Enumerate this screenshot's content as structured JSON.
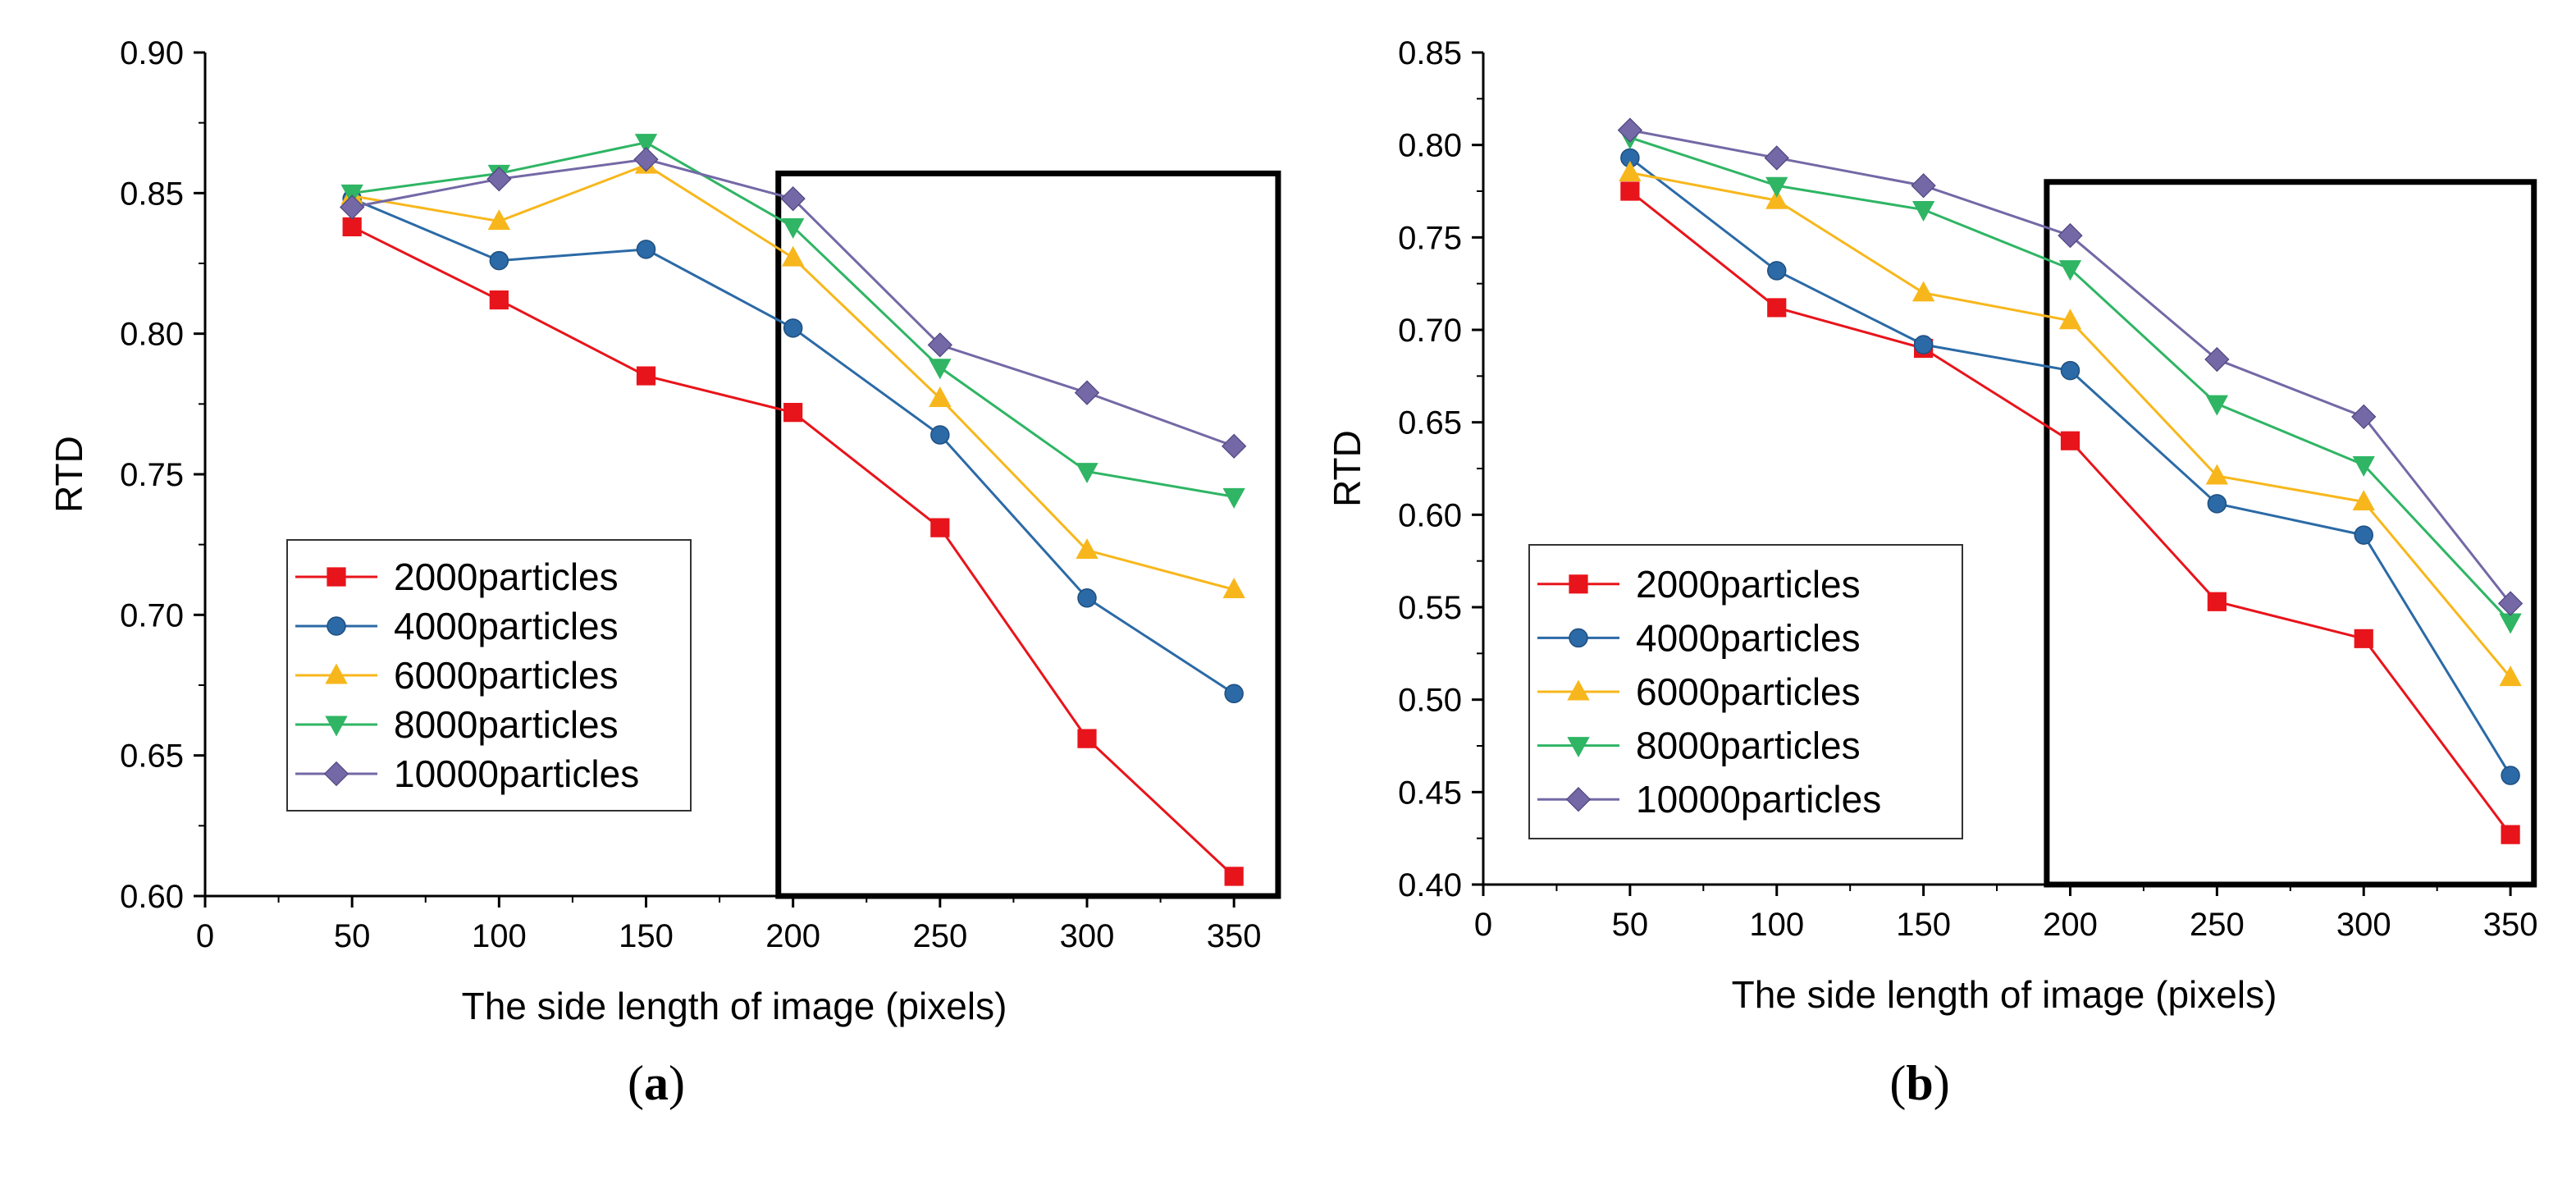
{
  "chart_data": [
    {
      "type": "line",
      "panel_label": "a",
      "xlabel": "The side length of image (pixels)",
      "ylabel": "RTD",
      "xlim": [
        0,
        360
      ],
      "ylim": [
        0.6,
        0.9
      ],
      "xticks": [
        0,
        50,
        100,
        150,
        200,
        250,
        300,
        350
      ],
      "yticks": [
        0.6,
        0.65,
        0.7,
        0.75,
        0.8,
        0.85,
        0.9
      ],
      "x": [
        50,
        100,
        150,
        200,
        250,
        300,
        350
      ],
      "legend_position": "bottom-left",
      "highlight_box": {
        "x_from": 195,
        "x_to": 365,
        "y_from": 0.6,
        "y_to": 0.857
      },
      "series": [
        {
          "name": "2000particles",
          "marker": "square",
          "color": "#e8141b",
          "values": [
            0.838,
            0.812,
            0.785,
            0.772,
            0.731,
            0.656,
            0.607
          ]
        },
        {
          "name": "4000particles",
          "marker": "circle",
          "color": "#2b6aa6",
          "values": [
            0.848,
            0.826,
            0.83,
            0.802,
            0.764,
            0.706,
            0.672
          ]
        },
        {
          "name": "6000particles",
          "marker": "triangle-up",
          "color": "#f7b71c",
          "values": [
            0.849,
            0.84,
            0.86,
            0.827,
            0.777,
            0.723,
            0.709
          ]
        },
        {
          "name": "8000particles",
          "marker": "triangle-down",
          "color": "#2fb564",
          "values": [
            0.85,
            0.857,
            0.868,
            0.838,
            0.788,
            0.751,
            0.742
          ]
        },
        {
          "name": "10000particles",
          "marker": "diamond",
          "color": "#7468a6",
          "values": [
            0.845,
            0.855,
            0.862,
            0.848,
            0.796,
            0.779,
            0.76
          ]
        }
      ]
    },
    {
      "type": "line",
      "panel_label": "b",
      "xlabel": "The side length of image (pixels)",
      "ylabel": "RTD",
      "xlim": [
        0,
        355
      ],
      "ylim": [
        0.4,
        0.85
      ],
      "xticks": [
        0,
        50,
        100,
        150,
        200,
        250,
        300,
        350
      ],
      "yticks": [
        0.4,
        0.45,
        0.5,
        0.55,
        0.6,
        0.65,
        0.7,
        0.75,
        0.8,
        0.85
      ],
      "x": [
        50,
        100,
        150,
        200,
        250,
        300,
        350
      ],
      "legend_position": "bottom-left",
      "highlight_box": {
        "x_from": 192,
        "x_to": 358,
        "y_from": 0.4,
        "y_to": 0.78
      },
      "series": [
        {
          "name": "2000particles",
          "marker": "square",
          "color": "#e8141b",
          "values": [
            0.775,
            0.712,
            0.69,
            0.64,
            0.553,
            0.533,
            0.427
          ]
        },
        {
          "name": "4000particles",
          "marker": "circle",
          "color": "#2b6aa6",
          "values": [
            0.793,
            0.732,
            0.692,
            0.678,
            0.606,
            0.589,
            0.459
          ]
        },
        {
          "name": "6000particles",
          "marker": "triangle-up",
          "color": "#f7b71c",
          "values": [
            0.785,
            0.77,
            0.72,
            0.705,
            0.621,
            0.607,
            0.512
          ]
        },
        {
          "name": "8000particles",
          "marker": "triangle-down",
          "color": "#2fb564",
          "values": [
            0.804,
            0.778,
            0.765,
            0.733,
            0.66,
            0.627,
            0.542
          ]
        },
        {
          "name": "10000particles",
          "marker": "diamond",
          "color": "#7468a6",
          "values": [
            0.808,
            0.793,
            0.778,
            0.751,
            0.684,
            0.653,
            0.552
          ]
        }
      ]
    }
  ]
}
